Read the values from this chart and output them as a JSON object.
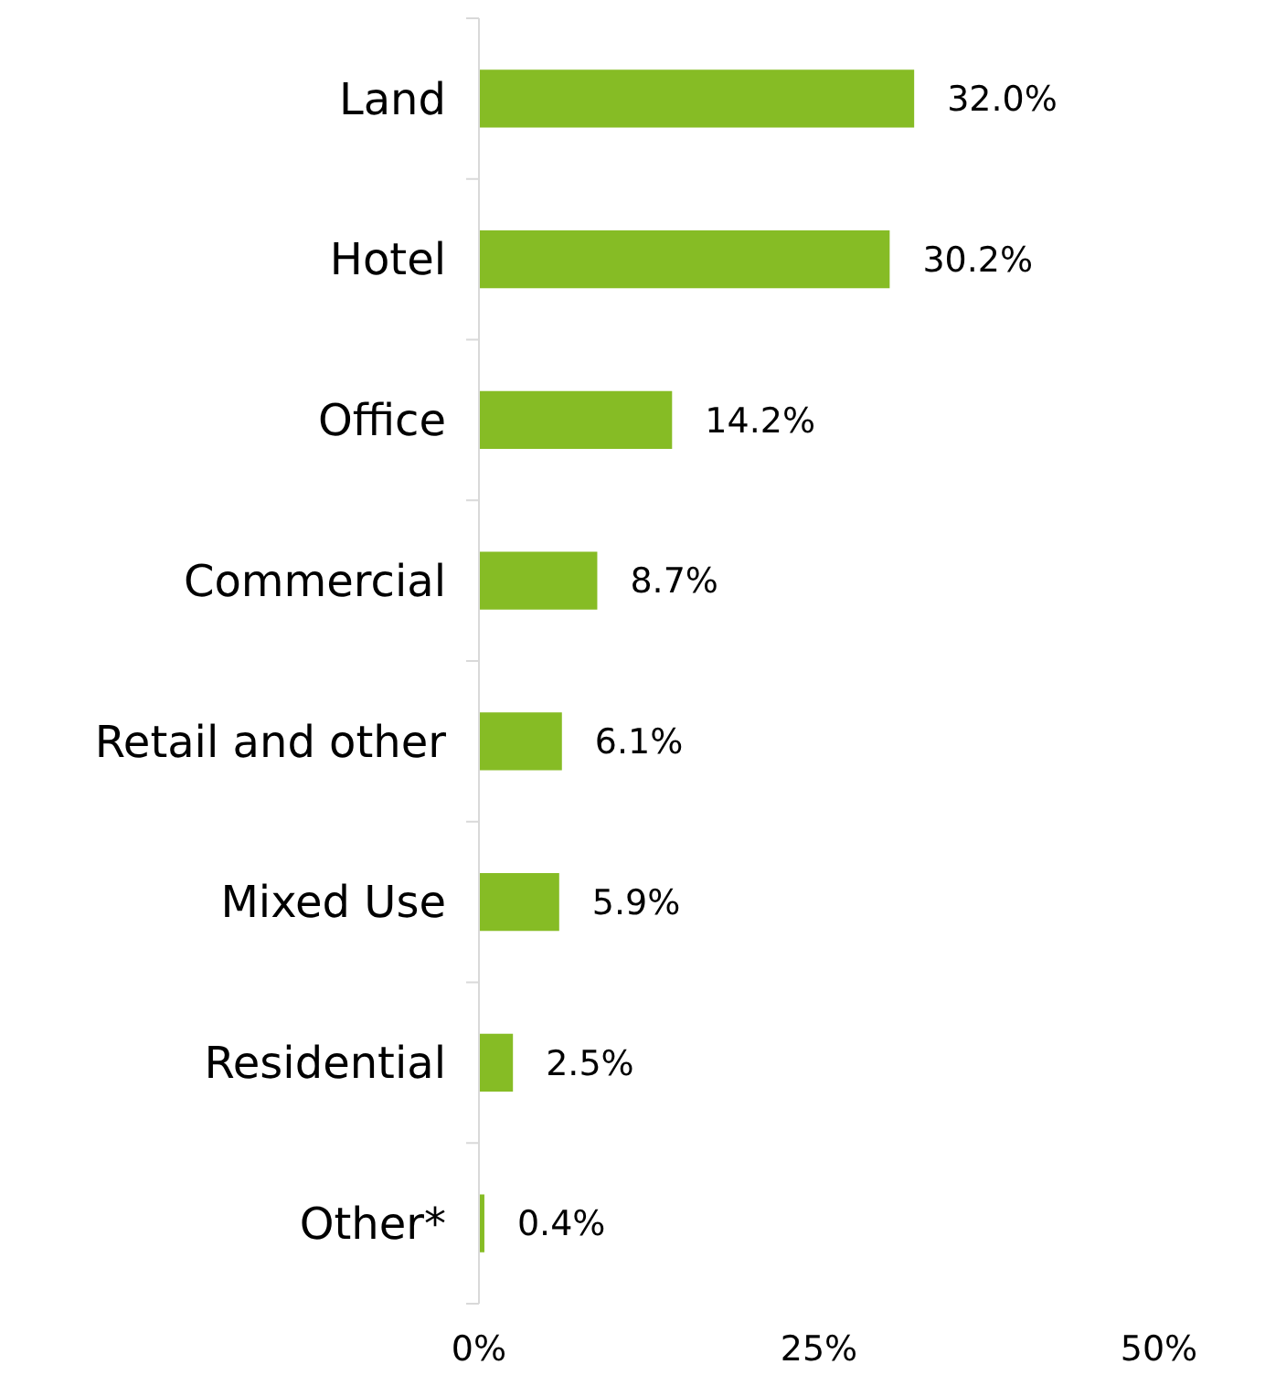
{
  "chart_data": {
    "type": "bar",
    "orientation": "horizontal",
    "categories": [
      "Land",
      "Hotel",
      "Office",
      "Commercial",
      "Retail and other",
      "Mixed Use",
      "Residential",
      "Other*"
    ],
    "values": [
      32.0,
      30.2,
      14.2,
      8.7,
      6.1,
      5.9,
      2.5,
      0.4
    ],
    "color": "#86bc25",
    "value_labels": [
      "32.0%",
      "30.2%",
      "14.2%",
      "8.7%",
      "6.1%",
      "5.9%",
      "2.5%",
      "0.4%"
    ],
    "xlim": [
      0,
      50
    ],
    "xticks": [
      {
        "value": 0,
        "label": "0%"
      },
      {
        "value": 25,
        "label": "25%"
      },
      {
        "value": 50,
        "label": "50%"
      }
    ],
    "grid": false
  }
}
